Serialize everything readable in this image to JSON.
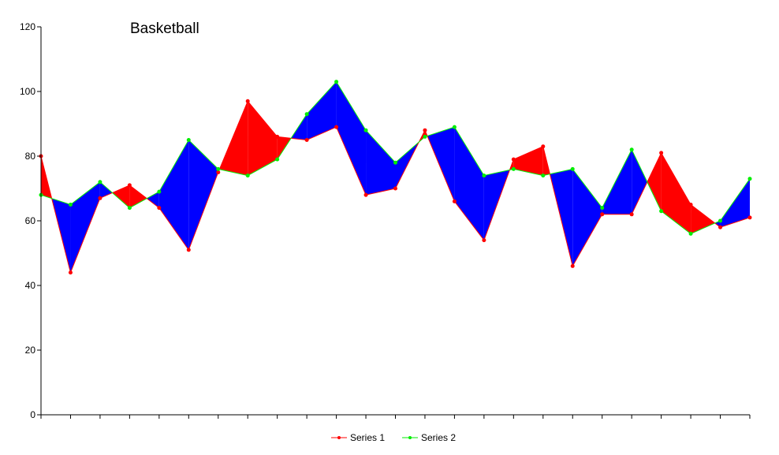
{
  "chart_data": {
    "type": "area",
    "title": "Basketball",
    "xlabel": "",
    "ylabel": "",
    "ylim": [
      0,
      120
    ],
    "yticks": [
      "0",
      "20",
      "40",
      "60",
      "80",
      "100",
      "120"
    ],
    "grid": false,
    "legend_position": "bottom",
    "fill_colors": {
      "series1_above": "#ff0000",
      "series2_above": "#0000ff"
    },
    "series": [
      {
        "name": "Series 1",
        "color": "#ff0000",
        "values": [
          80,
          44,
          67,
          71,
          64,
          51,
          75,
          97,
          86,
          85,
          89,
          68,
          70,
          88,
          66,
          54,
          79,
          83,
          46,
          62,
          62,
          81,
          65,
          58,
          61
        ]
      },
      {
        "name": "Series 2",
        "color": "#00ee00",
        "values": [
          68,
          65,
          72,
          64,
          69,
          85,
          76,
          74,
          79,
          93,
          103,
          88,
          78,
          86,
          89,
          74,
          76,
          74,
          76,
          64,
          82,
          63,
          56,
          60,
          73
        ]
      }
    ]
  }
}
